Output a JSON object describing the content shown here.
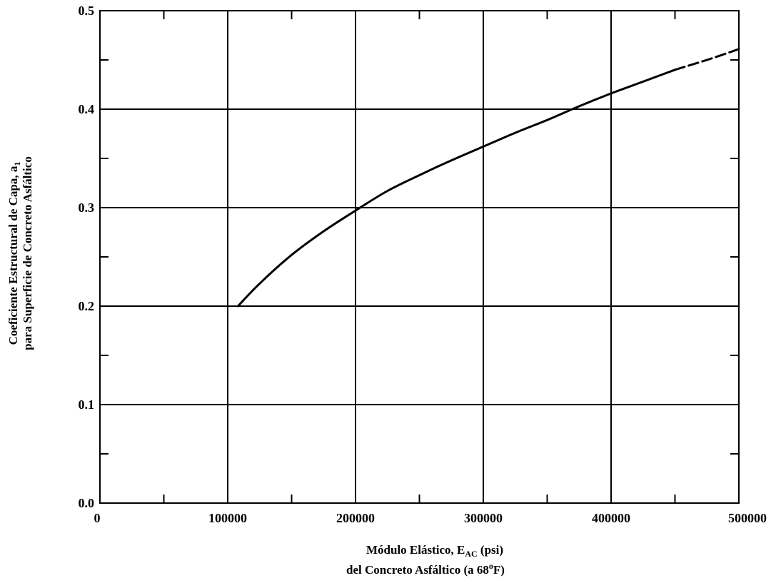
{
  "chart_data": {
    "type": "line",
    "title": "",
    "xlabel": {
      "line1_prefix": "Módulo Elástico, E",
      "line1_subscript": "AC",
      "line1_suffix": " (psi)",
      "line2_prefix": "del Concreto Asfáltico (a 68",
      "line2_superscript": "o",
      "line2_suffix": "F)"
    },
    "ylabel": {
      "line1_prefix": "Coeficiente Estructural de Capa, a",
      "line1_subscript": "1",
      "line2": "para Superficie de Concreto Asfáltico"
    },
    "xlim": [
      0,
      500000
    ],
    "ylim": [
      0.0,
      0.5
    ],
    "x_major_ticks": [
      0,
      100000,
      200000,
      300000,
      400000,
      500000
    ],
    "x_tick_labels": [
      "0",
      "100000",
      "200000",
      "300000",
      "400000",
      "500000"
    ],
    "x_minor_ticks": [
      50000,
      150000,
      250000,
      350000,
      450000
    ],
    "y_major_ticks": [
      0.0,
      0.1,
      0.2,
      0.3,
      0.4,
      0.5
    ],
    "y_tick_labels": [
      "0.0",
      "0.1",
      "0.2",
      "0.3",
      "0.4",
      "0.5"
    ],
    "y_minor_ticks": [
      0.05,
      0.15,
      0.25,
      0.35,
      0.45
    ],
    "grid": true,
    "series": [
      {
        "style": "solid",
        "x": [
          108000,
          125000,
          150000,
          175000,
          200000,
          225000,
          250000,
          275000,
          300000,
          325000,
          350000,
          375000,
          400000,
          425000,
          450000
        ],
        "y": [
          0.2,
          0.223,
          0.252,
          0.276,
          0.297,
          0.317,
          0.333,
          0.348,
          0.362,
          0.376,
          0.389,
          0.403,
          0.416,
          0.428,
          0.44
        ]
      },
      {
        "style": "dashed",
        "x": [
          450000,
          475000,
          500000
        ],
        "y": [
          0.44,
          0.45,
          0.461
        ]
      }
    ]
  }
}
